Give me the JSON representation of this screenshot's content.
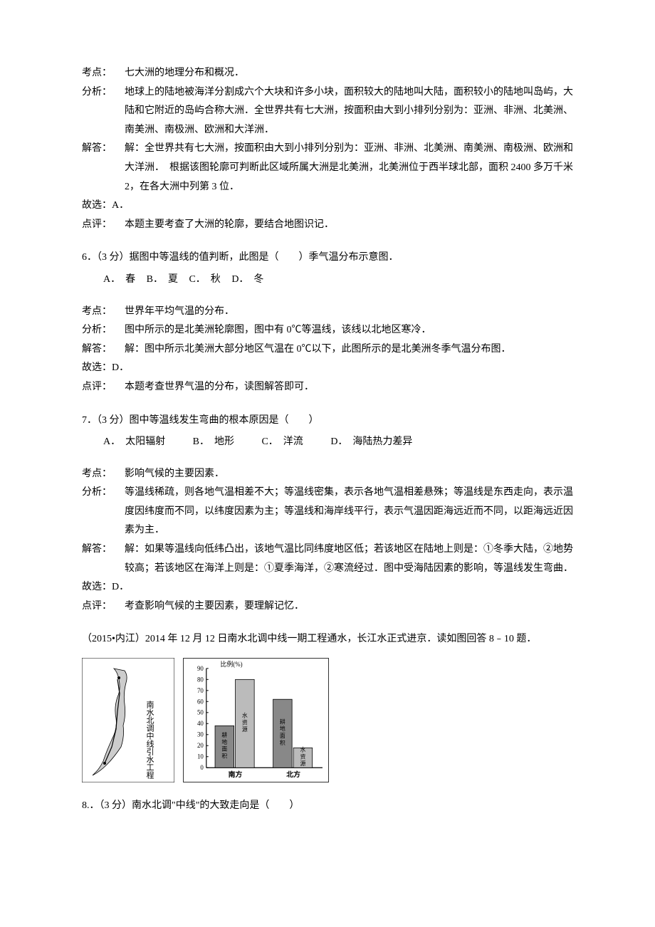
{
  "q5_solution": {
    "topic_label": "考点：",
    "topic": "七大洲的地理分布和概况．",
    "analysis_label": "分析：",
    "analysis": "地球上的陆地被海洋分割成六个大块和许多小块，面积较大的陆地叫大陆，面积较小的陆地叫岛屿，大陆和它附近的岛屿合称大洲．全世界共有七大洲，按面积由大到小排列分别为：亚洲、非洲、北美洲、南美洲、南极洲、欧洲和大洋洲．",
    "answer_label": "解答：",
    "answer": "解：全世界共有七大洲，按面积由大到小排列分别为：亚洲、非洲、北美洲、南美洲、南极洲、欧洲和大洋洲．　根据该图轮廓可判断此区域所属大洲是北美洲，北美洲位于西半球北部，面积 2400 多万千米 2，在各大洲中列第 3 位．",
    "conclusion": "故选：A．",
    "comment_label": "点评：",
    "comment": "本题主要考查了大洲的轮廓，要结合地图识记．"
  },
  "q6": {
    "stem": "6．（3 分）据图中等温线的值判断，此图是（　　）季气温分布示意图．",
    "options": {
      "a": "A．　春",
      "b": "B．　夏",
      "c": "C．　秋",
      "d": "D．　冬"
    },
    "topic_label": "考点：",
    "topic": "世界年平均气温的分布．",
    "analysis_label": "分析：",
    "analysis": "图中所示的是北美洲轮廓图，图中有 0℃等温线，该线以北地区寒冷．",
    "answer_label": "解答：",
    "answer": "解：图中所示北美洲大部分地区气温在 0℃以下，此图所示的是北美洲冬季气温分布图．",
    "conclusion": "故选：D．",
    "comment_label": "点评：",
    "comment": "本题考查世界气温的分布，读图解答即可．"
  },
  "q7": {
    "stem": "7．（3 分）图中等温线发生弯曲的根本原因是（　　）",
    "options": {
      "a": "A．　太阳辐射",
      "b": "B．　地形",
      "c": "C．　洋流",
      "d": "D．　海陆热力差异"
    },
    "topic_label": "考点：",
    "topic": "影响气候的主要因素．",
    "analysis_label": "分析：",
    "analysis": "等温线稀疏，则各地气温相差不大；等温线密集，表示各地气温相差悬殊；等温线是东西走向，表示温度因纬度而不同，以纬度因素为主；等温线和海岸线平行，表示气温因距海远近而不同，以距海远近因素为主．",
    "answer_label": "解答：",
    "answer": "解：如果等温线向低纬凸出，该地气温比同纬度地区低；若该地区在陆地上则是：①冬季大陆，②地势较高；若该地区在海洋上则是：①夏季海洋，②寒流经过．图中受海陆因素的影响，等温线发生弯曲．",
    "conclusion": "故选：D．",
    "comment_label": "点评：",
    "comment": "考查影响气候的主要因素，要理解记忆．"
  },
  "passage": {
    "text": "（2015•内江）2014 年 12 月 12 日南水北调中线一期工程通水，长江水正式进京．读如图回答 8﹣10 题．"
  },
  "figure": {
    "map_caption": "南水北调中线引水工程",
    "chart": {
      "y_label": "比例(%)",
      "y_ticks": [
        0,
        10,
        20,
        30,
        40,
        50,
        60,
        70,
        80,
        90
      ],
      "x_labels": [
        "南方",
        "北方"
      ],
      "groups": [
        {
          "label": "南方",
          "bars": [
            {
              "name": "耕地面积",
              "value": 38,
              "color": "#888888",
              "pattern": "dots"
            },
            {
              "name": "水资源",
              "value": 80,
              "color": "#bbbbbb",
              "pattern": "diag"
            }
          ]
        },
        {
          "label": "北方",
          "bars": [
            {
              "name": "耕地面积",
              "value": 62,
              "color": "#888888",
              "pattern": "dots"
            },
            {
              "name": "水资源",
              "value": 18,
              "color": "#bbbbbb",
              "pattern": "diag"
            }
          ]
        }
      ],
      "bar_width_ratio": 0.35,
      "axis_color": "#000000",
      "grid_color": "#cccccc",
      "label_fontsize": 9
    }
  },
  "q8": {
    "stem": "8.．（3 分）南水北调\"中线\"的大致走向是（　　）"
  }
}
